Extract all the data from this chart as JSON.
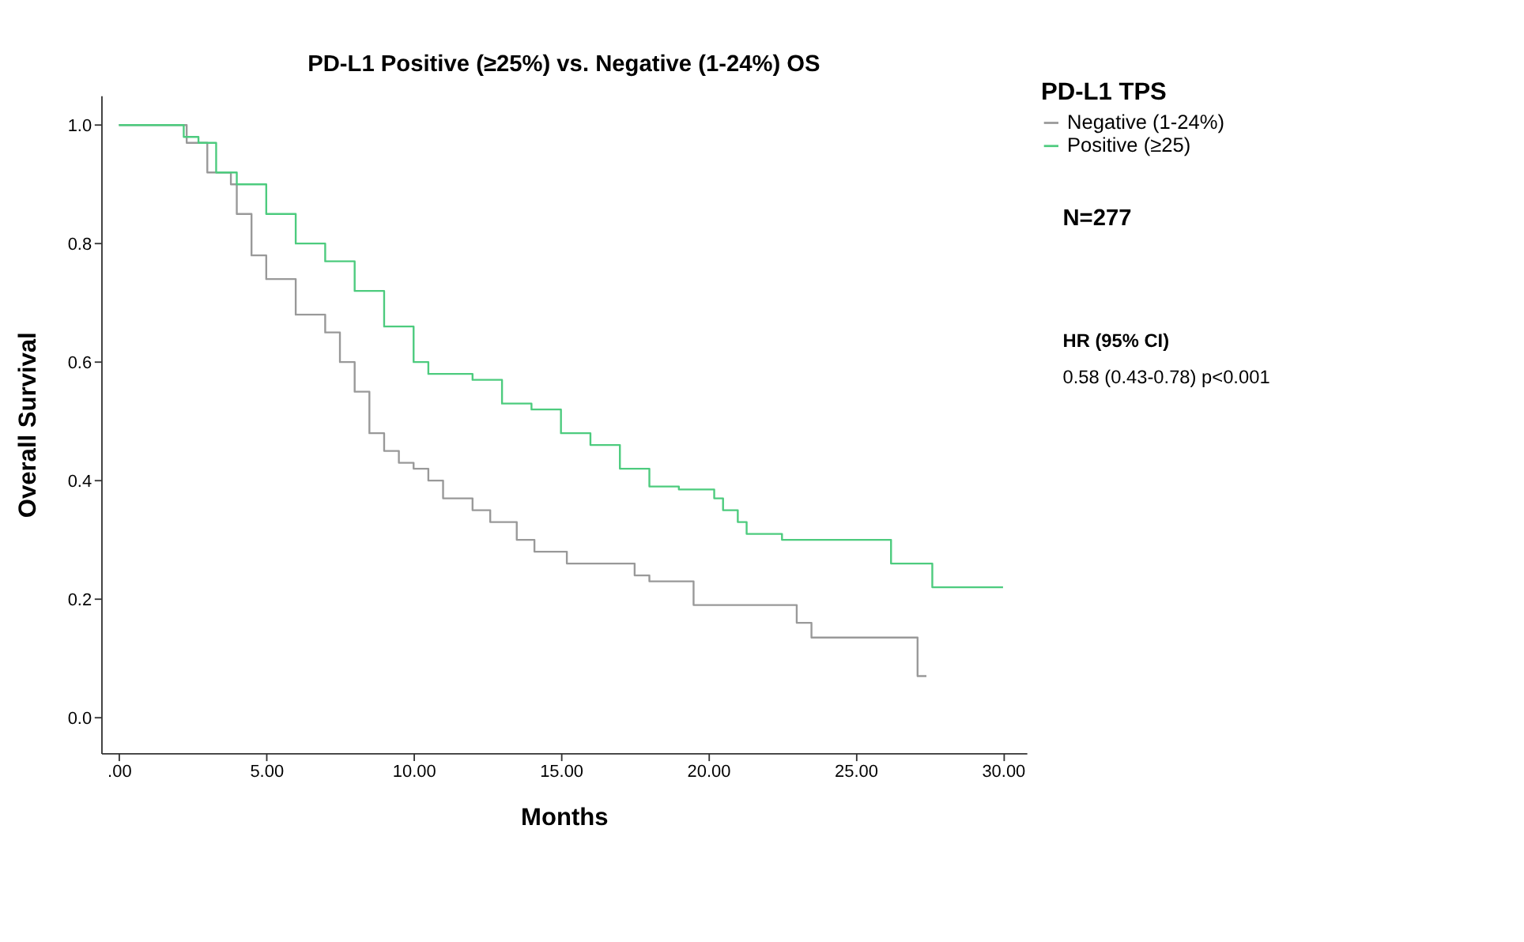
{
  "chart_data": {
    "type": "step",
    "title": "PD-L1 Positive (≥25%) vs. Negative (1-24%) OS",
    "xlabel": "Months",
    "ylabel": "Overall Survival",
    "legend_title": "PD-L1 TPS",
    "legend": "top right",
    "grid": false,
    "marker": "none",
    "line_style": "solid",
    "xlim": [
      -0.6,
      30.8
    ],
    "ylim": [
      -0.06,
      1.05
    ],
    "xticks": [
      {
        "value": 0,
        "label": ".00"
      },
      {
        "value": 5,
        "label": "5.00"
      },
      {
        "value": 10,
        "label": "10.00"
      },
      {
        "value": 15,
        "label": "15.00"
      },
      {
        "value": 20,
        "label": "20.00"
      },
      {
        "value": 25,
        "label": "25.00"
      },
      {
        "value": 30,
        "label": "30.00"
      }
    ],
    "yticks": [
      {
        "value": 0,
        "label": "0.0"
      },
      {
        "value": 0.2,
        "label": "0.2"
      },
      {
        "value": 0.4,
        "label": "0.4"
      },
      {
        "value": 0.6,
        "label": "0.6"
      },
      {
        "value": 0.8,
        "label": "0.8"
      },
      {
        "value": 1,
        "label": "1.0"
      }
    ],
    "series": [
      {
        "name": "Negative (1-24%)",
        "color": "#999999",
        "x": [
          0,
          2.3,
          3,
          3.8,
          4,
          4.5,
          5,
          6,
          7,
          7.5,
          8,
          8.5,
          9,
          9.5,
          10,
          10.5,
          11,
          12,
          12.6,
          13.5,
          14.1,
          15.2,
          17.5,
          18,
          19.5,
          23,
          23.5,
          27.1,
          27.4
        ],
        "values": [
          1.0,
          0.97,
          0.92,
          0.9,
          0.85,
          0.78,
          0.74,
          0.68,
          0.65,
          0.6,
          0.55,
          0.48,
          0.45,
          0.43,
          0.42,
          0.4,
          0.37,
          0.35,
          0.33,
          0.3,
          0.28,
          0.26,
          0.24,
          0.23,
          0.19,
          0.16,
          0.135,
          0.07,
          0.07
        ]
      },
      {
        "name": "Positive (≥25)",
        "color": "#4dcb7e",
        "x": [
          0,
          2.2,
          2.7,
          3.3,
          4,
          5,
          6,
          7,
          8,
          9,
          10,
          10.5,
          12,
          13,
          14,
          15,
          16,
          17,
          18,
          19,
          20.2,
          20.5,
          21,
          21.3,
          22.5,
          26.2,
          27.6,
          30
        ],
        "values": [
          1.0,
          0.98,
          0.97,
          0.92,
          0.9,
          0.85,
          0.8,
          0.77,
          0.72,
          0.66,
          0.6,
          0.58,
          0.57,
          0.53,
          0.52,
          0.48,
          0.46,
          0.42,
          0.39,
          0.385,
          0.37,
          0.35,
          0.33,
          0.31,
          0.3,
          0.26,
          0.22,
          0.22
        ]
      }
    ],
    "annotations": [
      "N=277",
      "HR (95% CI)",
      "0.58 (0.43-0.78) p<0.001"
    ]
  }
}
